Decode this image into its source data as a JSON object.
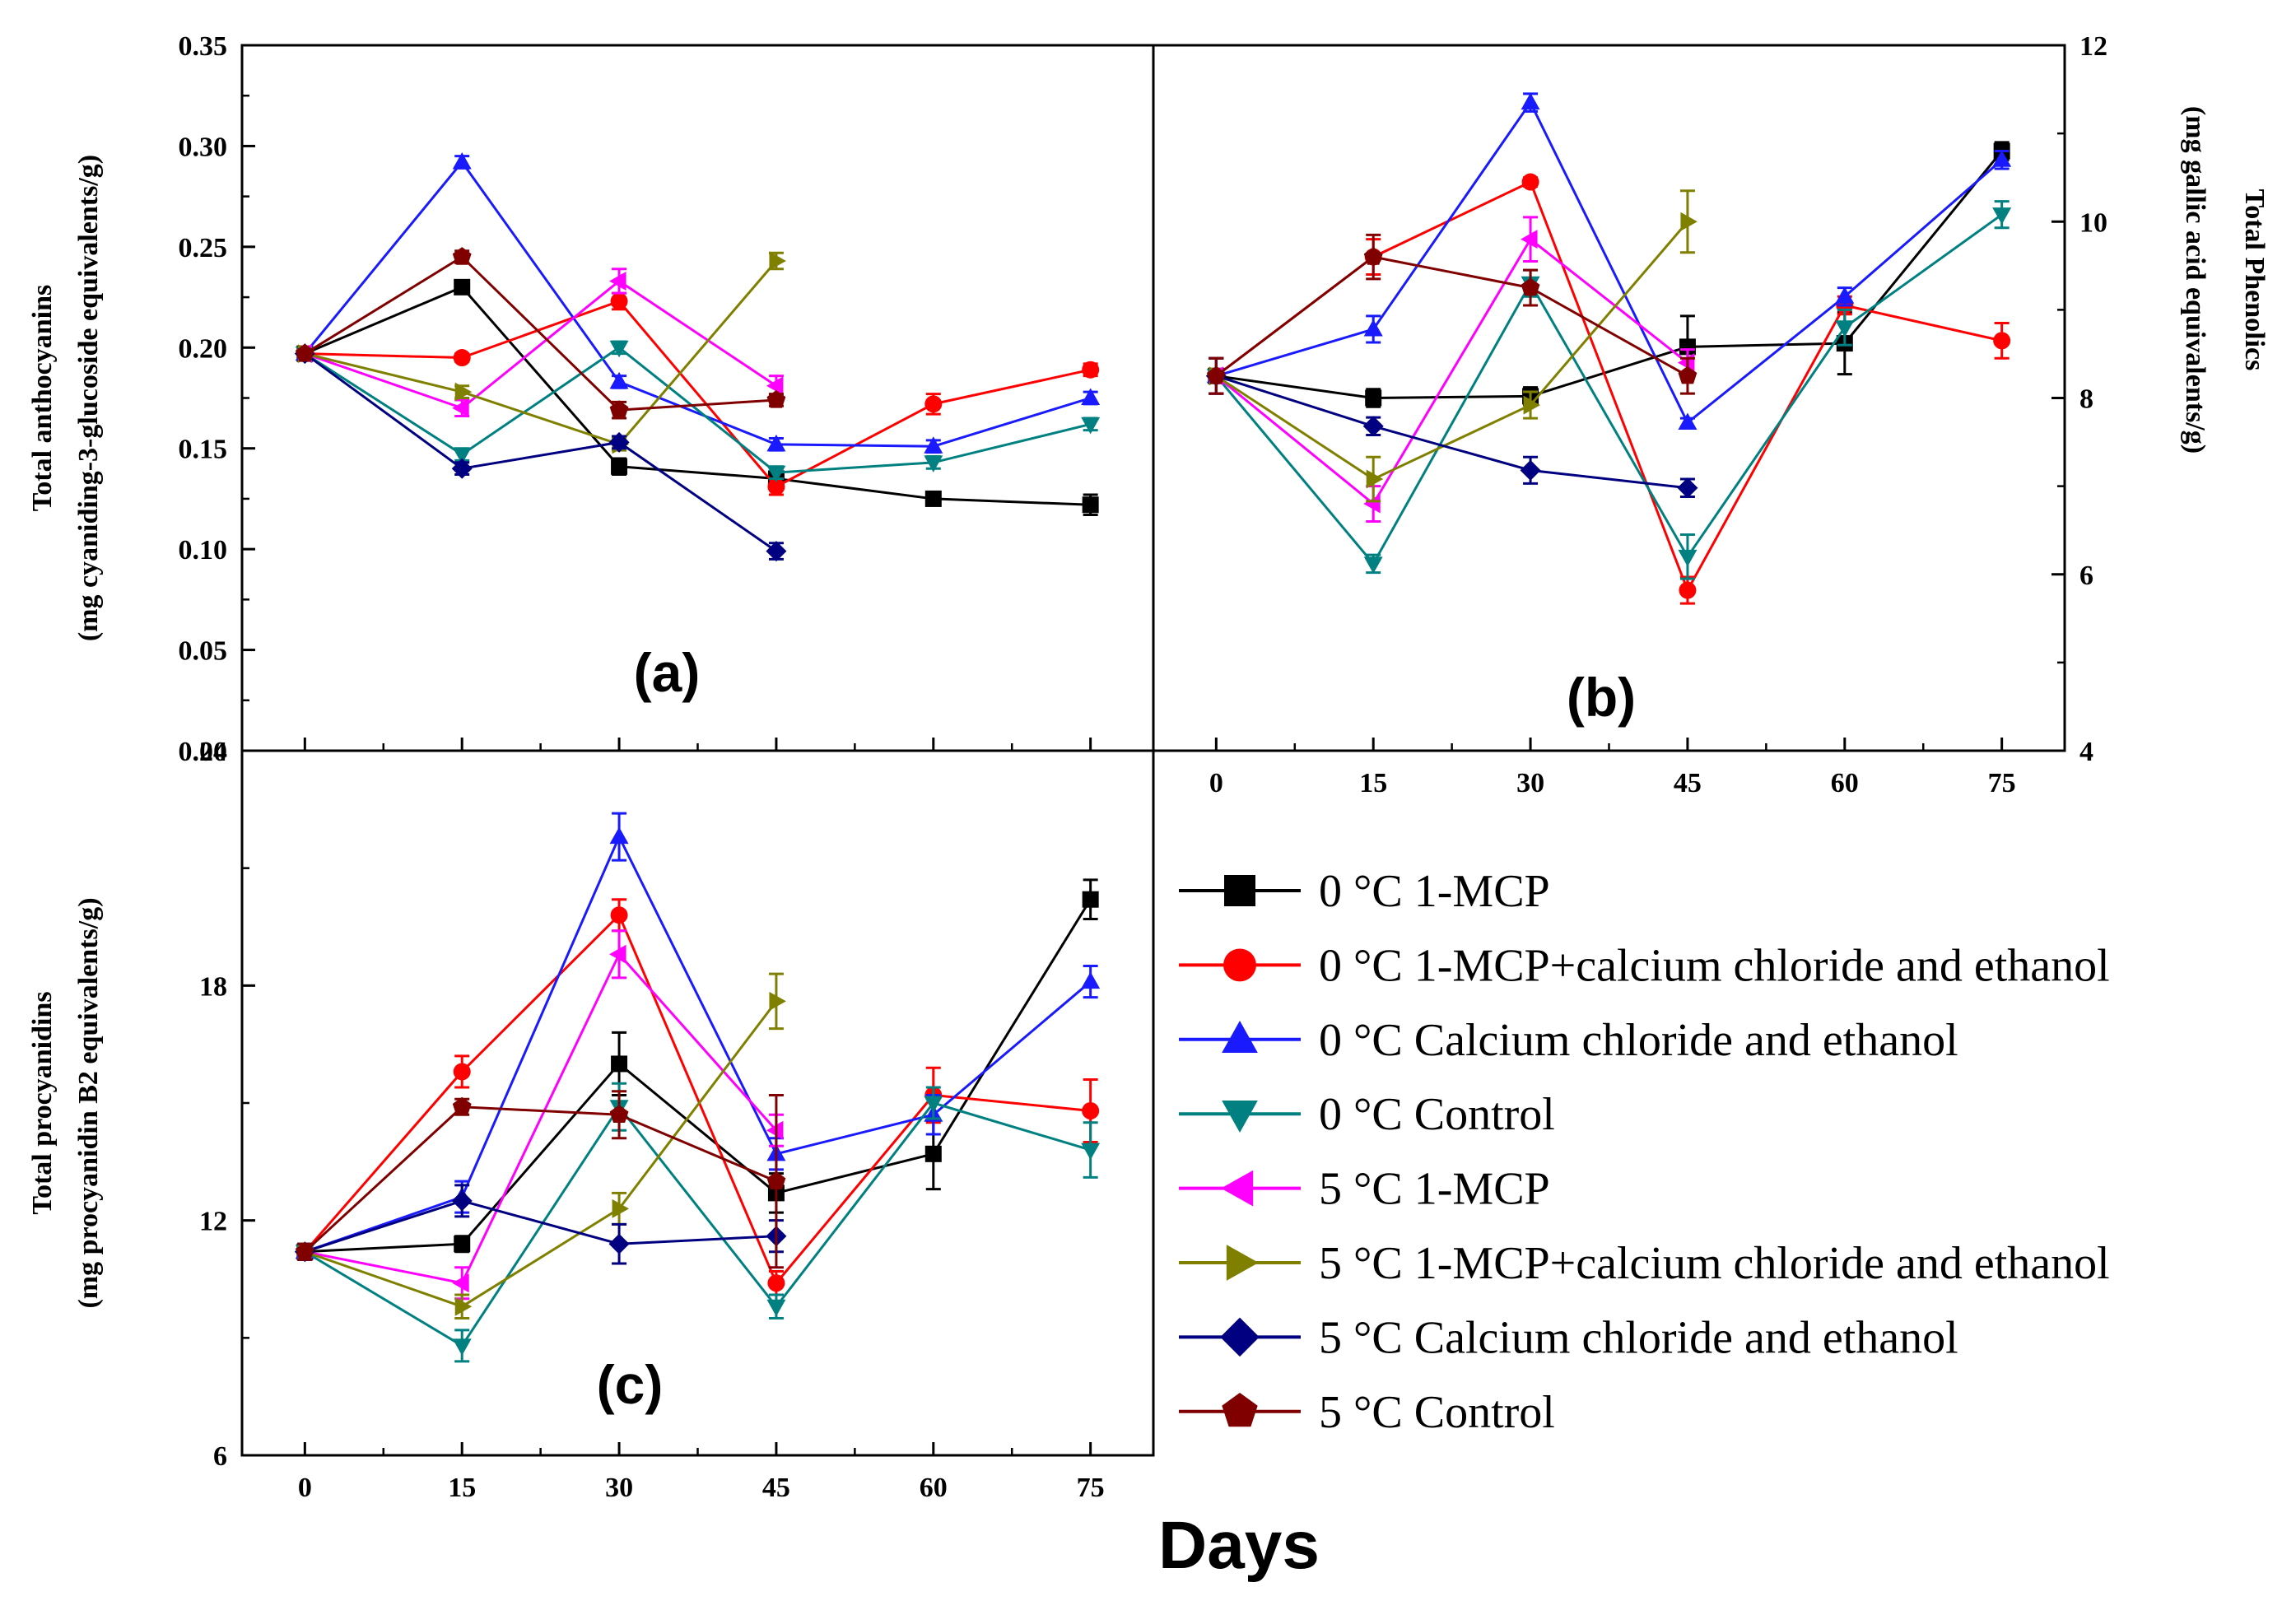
{
  "figure": {
    "x_axis_label": "Days"
  },
  "legend": [
    {
      "label": "0 °C 1-MCP",
      "color": "#000000",
      "marker": "square"
    },
    {
      "label": "0 °C 1-MCP+calcium chloride and ethanol",
      "color": "#ff0000",
      "marker": "circle"
    },
    {
      "label": "0 °C Calcium chloride and ethanol",
      "color": "#1a1aff",
      "marker": "triangle-up"
    },
    {
      "label": "0 °C Control",
      "color": "#008080",
      "marker": "triangle-down"
    },
    {
      "label": "5 °C 1-MCP",
      "color": "#ff00ff",
      "marker": "triangle-left"
    },
    {
      "label": "5 °C 1-MCP+calcium chloride and ethanol",
      "color": "#808000",
      "marker": "triangle-right"
    },
    {
      "label": "5 °C Calcium chloride and ethanol",
      "color": "#000080",
      "marker": "diamond"
    },
    {
      "label": "5 °C Control",
      "color": "#800000",
      "marker": "pentagon"
    }
  ],
  "chart_data": [
    {
      "panel": "(a)",
      "type": "line",
      "x": [
        0,
        15,
        30,
        45,
        60,
        75
      ],
      "xticks": [
        "0",
        "15",
        "30",
        "45",
        "60",
        "75"
      ],
      "ylabel_line1": "Total anthocyanins",
      "ylabel_line2": "(mg cyaniding-3-glucoside equivalents/g)",
      "ylim": [
        0.0,
        0.35
      ],
      "yticks": [
        "0.00",
        "0.05",
        "0.10",
        "0.15",
        "0.20",
        "0.25",
        "0.30",
        "0.35"
      ],
      "series": [
        {
          "name": "0 °C 1-MCP",
          "values": [
            0.197,
            0.23,
            0.141,
            0.135,
            0.125,
            0.122
          ],
          "errors": [
            0.003,
            0.003,
            0.004,
            0.003,
            0.003,
            0.005
          ]
        },
        {
          "name": "0 °C 1-MCP+calcium chloride and ethanol",
          "values": [
            0.197,
            0.195,
            0.223,
            0.131,
            0.172,
            0.189
          ],
          "errors": [
            0.002,
            0.002,
            0.004,
            0.004,
            0.005,
            0.003
          ]
        },
        {
          "name": "0 °C Calcium chloride and ethanol",
          "values": [
            0.197,
            0.292,
            0.183,
            0.152,
            0.151,
            0.175
          ],
          "errors": [
            0.002,
            0.003,
            0.003,
            0.003,
            0.003,
            0.003
          ]
        },
        {
          "name": "0 °C Control",
          "values": [
            0.197,
            0.147,
            0.2,
            0.138,
            0.143,
            0.162
          ],
          "errors": [
            0.002,
            0.003,
            0.003,
            0.003,
            0.003,
            0.003
          ]
        },
        {
          "name": "5 °C 1-MCP",
          "values": [
            0.197,
            0.17,
            0.233,
            0.181,
            null,
            null
          ],
          "errors": [
            0.002,
            0.004,
            0.006,
            0.005,
            null,
            null
          ]
        },
        {
          "name": "5 °C 1-MCP+calcium chloride and ethanol",
          "values": [
            0.197,
            0.178,
            0.152,
            0.243,
            null,
            null
          ],
          "errors": [
            0.002,
            0.003,
            0.003,
            0.004,
            null,
            null
          ]
        },
        {
          "name": "5 °C Calcium chloride and ethanol",
          "values": [
            0.197,
            0.14,
            0.153,
            0.099,
            null,
            null
          ],
          "errors": [
            0.002,
            0.003,
            0.003,
            0.004,
            null,
            null
          ]
        },
        {
          "name": "5 °C Control",
          "values": [
            0.197,
            0.245,
            0.169,
            0.174,
            null,
            null
          ],
          "errors": [
            0.002,
            0.003,
            0.004,
            0.003,
            null,
            null
          ]
        }
      ]
    },
    {
      "panel": "(b)",
      "type": "line",
      "x": [
        0,
        15,
        30,
        45,
        60,
        75
      ],
      "xticks": [
        "0",
        "15",
        "30",
        "45",
        "60",
        "75"
      ],
      "ylabel_line1": "Total Phenolics",
      "ylabel_line2": "(mg gallic acid equivalents/g)",
      "ylim": [
        4,
        12
      ],
      "yticks": [
        "4",
        "6",
        "8",
        "10",
        "12"
      ],
      "series": [
        {
          "name": "0 °C 1-MCP",
          "values": [
            8.25,
            8.0,
            8.02,
            8.58,
            8.62,
            10.8
          ],
          "errors": [
            0.2,
            0.1,
            0.1,
            0.35,
            0.35,
            0.1
          ]
        },
        {
          "name": "0 °C 1-MCP+calcium chloride and ethanol",
          "values": [
            8.25,
            9.6,
            10.45,
            5.82,
            9.05,
            8.65
          ],
          "errors": [
            0.2,
            0.2,
            0.05,
            0.15,
            0.1,
            0.2
          ]
        },
        {
          "name": "0 °C Calcium chloride and ethanol",
          "values": [
            8.25,
            8.78,
            11.35,
            7.72,
            9.15,
            10.7
          ],
          "errors": [
            0.2,
            0.15,
            0.1,
            0.05,
            0.1,
            0.1
          ]
        },
        {
          "name": "0 °C Control",
          "values": [
            8.25,
            6.12,
            9.3,
            6.2,
            8.8,
            10.08
          ],
          "errors": [
            0.2,
            0.1,
            0.15,
            0.25,
            0.2,
            0.15
          ]
        },
        {
          "name": "5 °C 1-MCP",
          "values": [
            8.25,
            6.8,
            9.8,
            8.4,
            null,
            null
          ],
          "errors": [
            0.2,
            0.2,
            0.25,
            0.15,
            null,
            null
          ]
        },
        {
          "name": "5 °C 1-MCP+calcium chloride and ethanol",
          "values": [
            8.25,
            7.08,
            7.92,
            10.0,
            null,
            null
          ],
          "errors": [
            0.2,
            0.25,
            0.15,
            0.35,
            null,
            null
          ]
        },
        {
          "name": "5 °C Calcium chloride and ethanol",
          "values": [
            8.25,
            7.68,
            7.18,
            6.98,
            null,
            null
          ],
          "errors": [
            0.2,
            0.1,
            0.15,
            0.1,
            null,
            null
          ]
        },
        {
          "name": "5 °C Control",
          "values": [
            8.25,
            9.6,
            9.25,
            8.25,
            null,
            null
          ],
          "errors": [
            0.2,
            0.25,
            0.2,
            0.2,
            null,
            null
          ]
        }
      ]
    },
    {
      "panel": "(c)",
      "type": "line",
      "x": [
        0,
        15,
        30,
        45,
        60,
        75
      ],
      "xticks": [
        "0",
        "15",
        "30",
        "45",
        "60",
        "75"
      ],
      "ylabel_line1": "Total procyanidins",
      "ylabel_line2": "(mg procyanidin B2 equivalents/g)",
      "ylim": [
        6,
        24
      ],
      "yticks": [
        "6",
        "12",
        "18",
        "24"
      ],
      "series": [
        {
          "name": "0 °C 1-MCP",
          "values": [
            11.2,
            11.4,
            16.0,
            12.7,
            13.7,
            20.2
          ],
          "errors": [
            0.2,
            0.2,
            0.8,
            0.5,
            0.9,
            0.5
          ]
        },
        {
          "name": "0 °C 1-MCP+calcium chloride and ethanol",
          "values": [
            11.2,
            15.8,
            19.8,
            10.4,
            15.2,
            14.8
          ],
          "errors": [
            0.2,
            0.4,
            0.4,
            0.3,
            0.7,
            0.8
          ]
        },
        {
          "name": "0 °C Calcium chloride and ethanol",
          "values": [
            11.2,
            12.6,
            21.8,
            13.7,
            14.7,
            18.1
          ],
          "errors": [
            0.2,
            0.4,
            0.6,
            0.4,
            0.5,
            0.4
          ]
        },
        {
          "name": "0 °C Control",
          "values": [
            11.2,
            8.8,
            14.9,
            9.8,
            15.0,
            13.8
          ],
          "errors": [
            0.2,
            0.4,
            0.6,
            0.3,
            0.4,
            0.7
          ]
        },
        {
          "name": "5 °C 1-MCP",
          "values": [
            11.2,
            10.4,
            18.8,
            14.3,
            null,
            null
          ],
          "errors": [
            0.2,
            0.4,
            0.6,
            0.4,
            null,
            null
          ]
        },
        {
          "name": "5 °C 1-MCP+calcium chloride and ethanol",
          "values": [
            11.2,
            9.8,
            12.3,
            17.6,
            null,
            null
          ],
          "errors": [
            0.2,
            0.3,
            0.4,
            0.7,
            null,
            null
          ]
        },
        {
          "name": "5 °C Calcium chloride and ethanol",
          "values": [
            11.2,
            12.5,
            11.4,
            11.6,
            null,
            null
          ],
          "errors": [
            0.2,
            0.4,
            0.5,
            0.4,
            null,
            null
          ]
        },
        {
          "name": "5 °C Control",
          "values": [
            11.2,
            14.9,
            14.7,
            13.0,
            null,
            null
          ],
          "errors": [
            0.2,
            0.2,
            0.6,
            2.2,
            null,
            null
          ]
        }
      ]
    }
  ]
}
